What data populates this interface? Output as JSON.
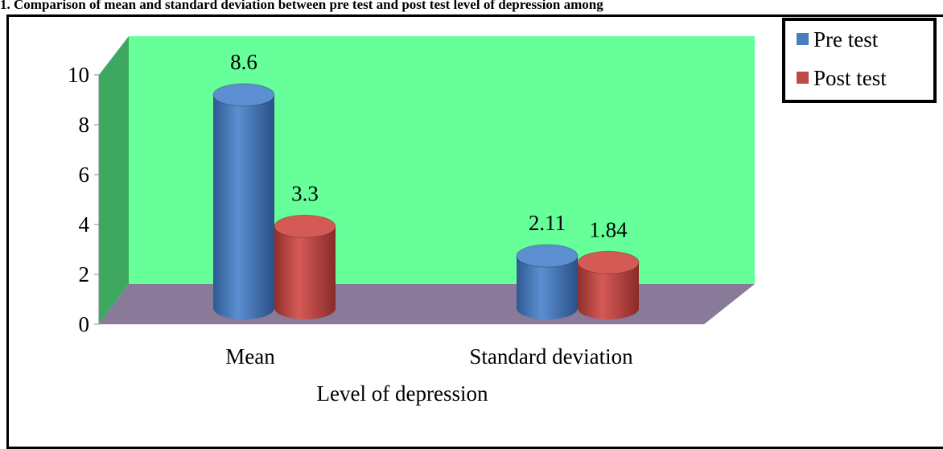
{
  "chart_data": {
    "type": "bar",
    "title": "1. Comparison of mean and standard deviation between pre test and post test level of depression among",
    "xlabel": "Level of depression",
    "ylabel": "",
    "categories": [
      "Mean",
      "Standard deviation"
    ],
    "series": [
      {
        "name": "Pre test",
        "values": [
          8.6,
          2.11
        ],
        "color": "#4a7ebb"
      },
      {
        "name": "Post test",
        "values": [
          3.3,
          1.84
        ],
        "color": "#be4b48"
      }
    ],
    "data_labels": [
      [
        "8.6",
        "2.11"
      ],
      [
        "3.3",
        "1.84"
      ]
    ],
    "y_ticks": [
      "0",
      "2",
      "4",
      "6",
      "8",
      "10"
    ],
    "ylim": [
      0,
      10
    ],
    "legend_position": "top-right",
    "grid": false,
    "wall_color": "#66ff99",
    "side_wall_color": "#3fa860",
    "floor_color": "#8a7a99"
  }
}
